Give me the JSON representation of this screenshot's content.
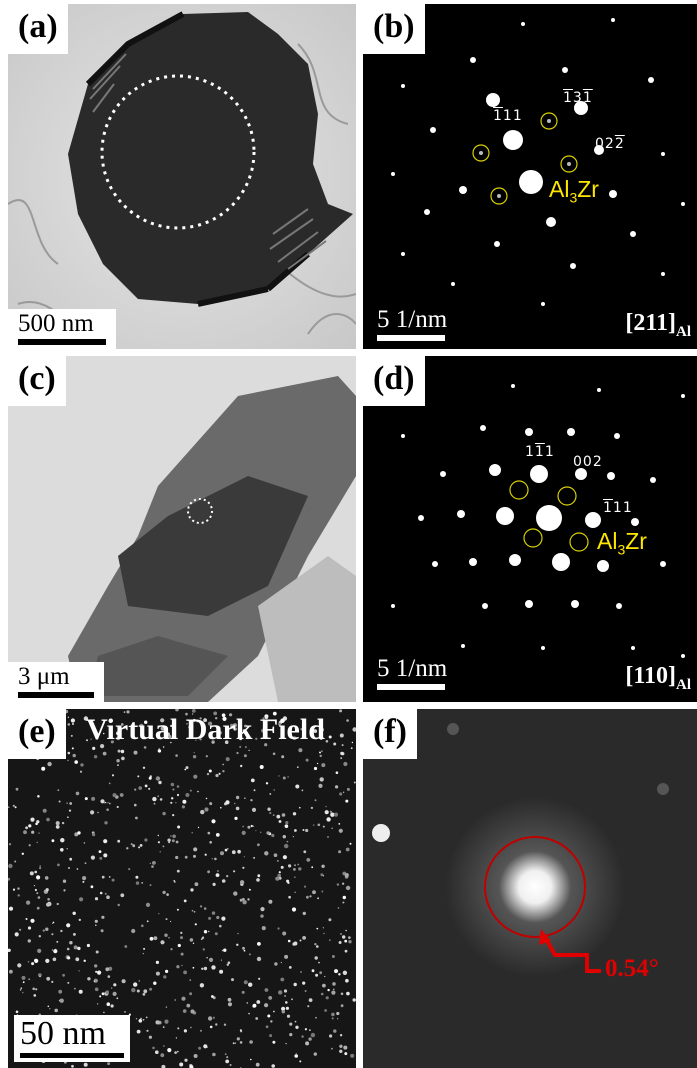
{
  "panels": {
    "a": {
      "label": "(a)",
      "scale": "500 nm"
    },
    "b": {
      "label": "(b)",
      "scale": "5 1/nm",
      "zone": "[211]",
      "zone_sub": "Al",
      "idx1": "111",
      "idx1_bar": "1",
      "idx2": "131",
      "idx3": "022",
      "phase": "Al",
      "phase_sub": "3",
      "phase_end": "Zr"
    },
    "c": {
      "label": "(c)",
      "scale": "3 μm"
    },
    "d": {
      "label": "(d)",
      "scale": "5 1/nm",
      "zone": "[110]",
      "zone_sub": "Al",
      "idx1": "111",
      "idx2": "002",
      "idx3": "111",
      "phase": "Al",
      "phase_sub": "3",
      "phase_end": "Zr"
    },
    "e": {
      "label": "(e)",
      "title": "Virtual Dark Field",
      "scale": "50 nm"
    },
    "f": {
      "label": "(f)",
      "angle": "0.54°"
    }
  },
  "colors": {
    "phase_text": "#ffe600",
    "angle": "#e00000",
    "diffraction_circle": "#d8d000"
  }
}
